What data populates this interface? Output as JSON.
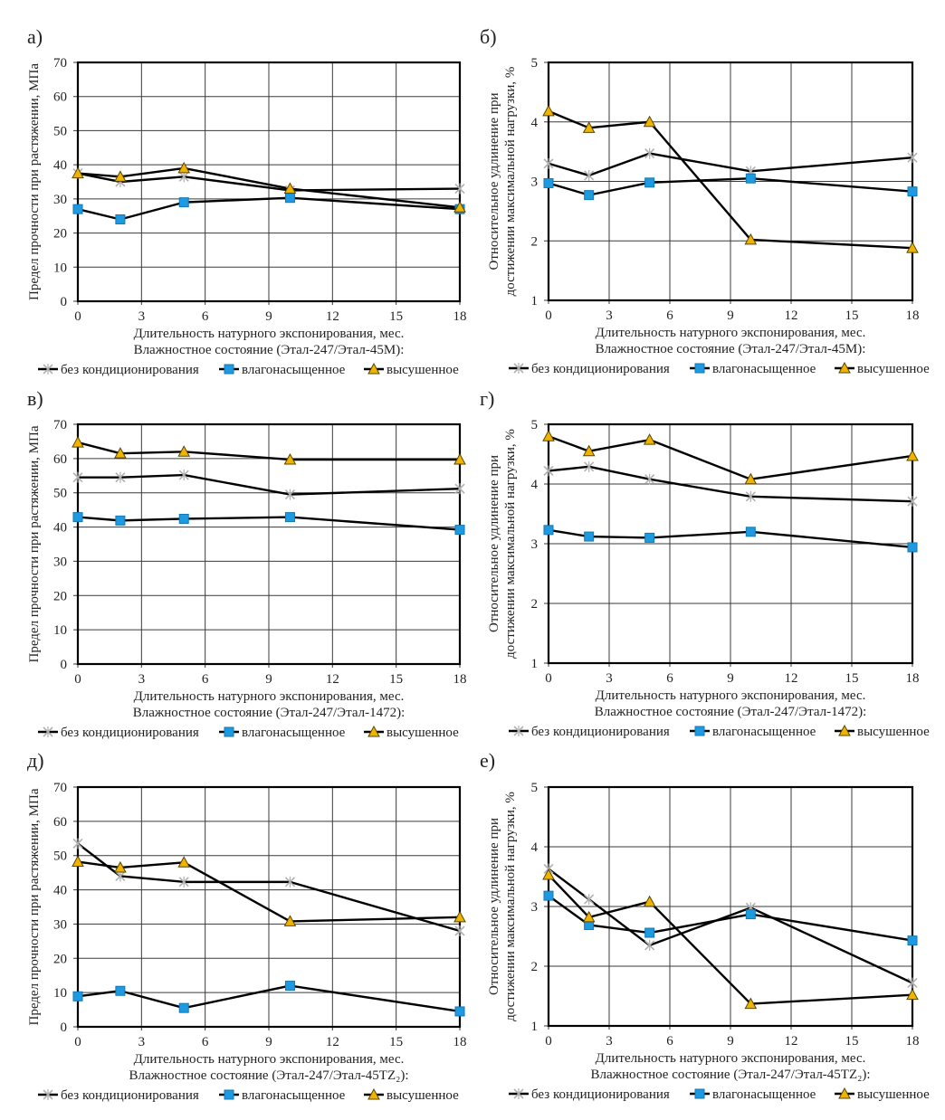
{
  "figure": {
    "panel_labels": [
      "а)",
      "б)",
      "в)",
      "г)",
      "д)",
      "е)"
    ]
  },
  "legend": {
    "entries": [
      {
        "name": "без кондиционирования",
        "marker": "asterisk-cross",
        "color": "#b0b0b0"
      },
      {
        "name": "влагонасыщенное",
        "marker": "square",
        "color": "#1e9be0"
      },
      {
        "name": "высушенное",
        "marker": "triangle",
        "color": "#f0b400"
      }
    ],
    "line_color": "#000000"
  },
  "chart_data": [
    {
      "id": "a",
      "panel_label": "а)",
      "type": "line",
      "xlabel": "Длительность натурного экспонирования, мес.",
      "subtitle": "Влажностное состояние (Этал-247/Этал-45М):",
      "ylabel": "Предел прочности при растяжении, МПа",
      "xlim": [
        0,
        18
      ],
      "ylim": [
        0,
        70
      ],
      "xticks": [
        "0",
        "3",
        "6",
        "9",
        "12",
        "15",
        "18"
      ],
      "yticks": [
        "0",
        "10",
        "20",
        "30",
        "40",
        "50",
        "60",
        "70"
      ],
      "grid": true,
      "legend_position": "bottom",
      "x": [
        0,
        2,
        5,
        10,
        18
      ],
      "series": [
        {
          "name": "без кондиционирования",
          "values": [
            37.5,
            35,
            36.5,
            32.5,
            33
          ]
        },
        {
          "name": "влагонасыщенное",
          "values": [
            27,
            24,
            29,
            30.3,
            27
          ]
        },
        {
          "name": "высушенное",
          "values": [
            37.5,
            36.5,
            39,
            33,
            27.5
          ]
        }
      ]
    },
    {
      "id": "b",
      "panel_label": "б)",
      "type": "line",
      "xlabel": "Длительность натурного экспонирования, мес.",
      "subtitle": "Влажностное состояние (Этал-247/Этал-45М):",
      "ylabel_line1": "Относительное удлинение при",
      "ylabel_line2": "достижении максимальной нагрузки, %",
      "xlim": [
        0,
        18
      ],
      "ylim": [
        1,
        5
      ],
      "xticks": [
        "0",
        "3",
        "6",
        "9",
        "12",
        "15",
        "18"
      ],
      "yticks": [
        "1",
        "2",
        "3",
        "4",
        "5"
      ],
      "grid": true,
      "legend_position": "bottom",
      "x": [
        0,
        2,
        5,
        10,
        18
      ],
      "series": [
        {
          "name": "без кондиционирования",
          "values": [
            3.3,
            3.1,
            3.47,
            3.17,
            3.4
          ]
        },
        {
          "name": "влагонасыщенное",
          "values": [
            2.97,
            2.77,
            2.98,
            3.05,
            2.83
          ]
        },
        {
          "name": "высушенное",
          "values": [
            4.18,
            3.9,
            4.0,
            2.02,
            1.88
          ]
        }
      ]
    },
    {
      "id": "c",
      "panel_label": "в)",
      "type": "line",
      "xlabel": "Длительность натурного экспонирования, мес.",
      "subtitle": "Влажностное состояние (Этал-247/Этал-1472):",
      "ylabel": "Предел прочности при растяжении, МПа",
      "xlim": [
        0,
        18
      ],
      "ylim": [
        0,
        70
      ],
      "xticks": [
        "0",
        "3",
        "6",
        "9",
        "12",
        "15",
        "18"
      ],
      "yticks": [
        "0",
        "10",
        "20",
        "30",
        "40",
        "50",
        "60",
        "70"
      ],
      "grid": true,
      "legend_position": "bottom",
      "x": [
        0,
        2,
        5,
        10,
        18
      ],
      "series": [
        {
          "name": "без кондиционирования",
          "values": [
            54.5,
            54.5,
            55.2,
            49.5,
            51.2
          ]
        },
        {
          "name": "влагонасыщенное",
          "values": [
            42.9,
            41.9,
            42.4,
            42.9,
            39.2
          ]
        },
        {
          "name": "высушенное",
          "values": [
            64.7,
            61.5,
            62,
            59.7,
            59.7
          ]
        }
      ]
    },
    {
      "id": "d",
      "panel_label": "г)",
      "type": "line",
      "xlabel": "Длительность натурного экспонирования, мес.",
      "subtitle": "Влажностное состояние (Этал-247/Этал-1472):",
      "ylabel_line1": "Относительное удлинение при",
      "ylabel_line2": "достижении максимальной нагрузки, %",
      "xlim": [
        0,
        18
      ],
      "ylim": [
        1,
        5
      ],
      "xticks": [
        "0",
        "3",
        "6",
        "9",
        "12",
        "15",
        "18"
      ],
      "yticks": [
        "1",
        "2",
        "3",
        "4",
        "5"
      ],
      "grid": true,
      "legend_position": "bottom",
      "x": [
        0,
        2,
        5,
        10,
        18
      ],
      "series": [
        {
          "name": "без кондиционирования",
          "values": [
            4.22,
            4.29,
            4.08,
            3.79,
            3.71
          ]
        },
        {
          "name": "влагонасыщенное",
          "values": [
            3.23,
            3.12,
            3.1,
            3.2,
            2.94
          ]
        },
        {
          "name": "высушенное",
          "values": [
            4.8,
            4.55,
            4.74,
            4.08,
            4.47
          ]
        }
      ]
    },
    {
      "id": "e",
      "panel_label": "д)",
      "type": "line",
      "xlabel": "Длительность натурного экспонирования, мес.",
      "subtitle": "Влажностное состояние (Этал-247/Этал-45TZ₂):",
      "ylabel": "Предел прочности при растяжении, МПа",
      "xlim": [
        0,
        18
      ],
      "ylim": [
        0,
        70
      ],
      "xticks": [
        "0",
        "3",
        "6",
        "9",
        "12",
        "15",
        "18"
      ],
      "yticks": [
        "0",
        "10",
        "20",
        "30",
        "40",
        "50",
        "60",
        "70"
      ],
      "grid": true,
      "legend_position": "bottom",
      "x": [
        0,
        2,
        5,
        10,
        18
      ],
      "series": [
        {
          "name": "без кондиционирования",
          "values": [
            53.5,
            44,
            42.3,
            42.3,
            28
          ]
        },
        {
          "name": "влагонасыщенное",
          "values": [
            8.9,
            10.5,
            5.5,
            12,
            4.5
          ]
        },
        {
          "name": "высушенное",
          "values": [
            48.2,
            46.5,
            48,
            30.8,
            32
          ]
        }
      ]
    },
    {
      "id": "f",
      "panel_label": "е)",
      "type": "line",
      "xlabel": "Длительность натурного экспонирования, мес.",
      "subtitle": "Влажностное состояние (Этал-247/Этал-45TZ₂):",
      "ylabel_line1": "Относительное удлинение при",
      "ylabel_line2": "достижении максимальной нагрузки, %",
      "xlim": [
        0,
        18
      ],
      "ylim": [
        1,
        5
      ],
      "xticks": [
        "0",
        "3",
        "6",
        "9",
        "12",
        "15",
        "18"
      ],
      "yticks": [
        "1",
        "2",
        "3",
        "4",
        "5"
      ],
      "grid": true,
      "legend_position": "bottom",
      "x": [
        0,
        2,
        5,
        10,
        18
      ],
      "series": [
        {
          "name": "без кондиционирования",
          "values": [
            3.63,
            3.12,
            2.35,
            2.98,
            1.72
          ]
        },
        {
          "name": "влагонасыщенное",
          "values": [
            3.18,
            2.69,
            2.56,
            2.87,
            2.43
          ]
        },
        {
          "name": "высушенное",
          "values": [
            3.53,
            2.82,
            3.08,
            1.37,
            1.52
          ]
        }
      ]
    }
  ]
}
